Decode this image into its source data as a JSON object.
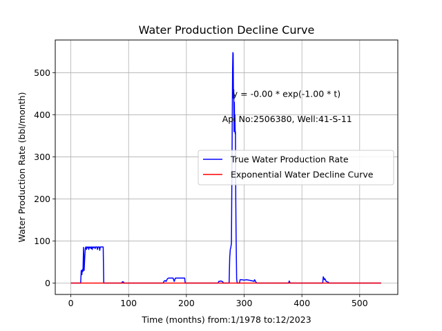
{
  "chart_data": {
    "type": "line",
    "title": "Water Production Decline Curve",
    "xlabel": "Time (months) from:1/1978 to:12/2023",
    "ylabel": "Water Production Rate (bbl/month)",
    "xlim": [
      -27,
      566
    ],
    "ylim": [
      -27,
      578
    ],
    "xticks": [
      0,
      100,
      200,
      300,
      400,
      500
    ],
    "yticks": [
      0,
      100,
      200,
      300,
      400,
      500
    ],
    "grid": true,
    "legend_position": "center-right",
    "annotations": [
      {
        "text": "y = -0.00 * exp(-1.00 * t)",
        "x": 280,
        "y": 450
      },
      {
        "text": "Api No:2506380, Well:41-S-11",
        "x": 262,
        "y": 390
      }
    ],
    "series": [
      {
        "name": "True Water Production Rate",
        "color": "#0000ff",
        "points": [
          [
            0,
            0
          ],
          [
            17,
            0
          ],
          [
            18,
            30
          ],
          [
            19,
            20
          ],
          [
            20,
            32
          ],
          [
            21,
            28
          ],
          [
            22,
            85
          ],
          [
            23,
            30
          ],
          [
            24,
            60
          ],
          [
            25,
            82
          ],
          [
            26,
            86
          ],
          [
            27,
            80
          ],
          [
            28,
            86
          ],
          [
            29,
            84
          ],
          [
            30,
            86
          ],
          [
            31,
            80
          ],
          [
            32,
            86
          ],
          [
            33,
            84
          ],
          [
            34,
            86
          ],
          [
            35,
            82
          ],
          [
            36,
            86
          ],
          [
            37,
            80
          ],
          [
            38,
            86
          ],
          [
            39,
            84
          ],
          [
            40,
            86
          ],
          [
            41,
            86
          ],
          [
            42,
            82
          ],
          [
            43,
            86
          ],
          [
            44,
            86
          ],
          [
            45,
            86
          ],
          [
            46,
            80
          ],
          [
            47,
            86
          ],
          [
            48,
            86
          ],
          [
            49,
            86
          ],
          [
            50,
            78
          ],
          [
            51,
            86
          ],
          [
            52,
            86
          ],
          [
            53,
            86
          ],
          [
            54,
            86
          ],
          [
            55,
            86
          ],
          [
            56,
            86
          ],
          [
            57,
            0
          ],
          [
            88,
            0
          ],
          [
            89,
            3
          ],
          [
            91,
            3
          ],
          [
            92,
            0
          ],
          [
            160,
            0
          ],
          [
            161,
            4
          ],
          [
            163,
            6
          ],
          [
            165,
            4
          ],
          [
            167,
            10
          ],
          [
            169,
            12
          ],
          [
            171,
            12
          ],
          [
            173,
            12
          ],
          [
            175,
            12
          ],
          [
            177,
            12
          ],
          [
            179,
            4
          ],
          [
            181,
            12
          ],
          [
            183,
            12
          ],
          [
            185,
            12
          ],
          [
            187,
            12
          ],
          [
            189,
            12
          ],
          [
            191,
            12
          ],
          [
            193,
            12
          ],
          [
            195,
            12
          ],
          [
            197,
            12
          ],
          [
            198,
            0
          ],
          [
            255,
            0
          ],
          [
            256,
            4
          ],
          [
            260,
            5
          ],
          [
            263,
            3
          ],
          [
            264,
            0
          ],
          [
            274,
            0
          ],
          [
            275,
            60
          ],
          [
            276,
            80
          ],
          [
            277,
            85
          ],
          [
            278,
            95
          ],
          [
            279,
            300
          ],
          [
            280,
            510
          ],
          [
            280.5,
            548
          ],
          [
            281,
            546
          ],
          [
            281.5,
            440
          ],
          [
            282,
            460
          ],
          [
            282.5,
            360
          ],
          [
            283,
            430
          ],
          [
            283.5,
            380
          ],
          [
            284,
            400
          ],
          [
            284.5,
            355
          ],
          [
            285,
            360
          ],
          [
            285.5,
            200
          ],
          [
            286,
            120
          ],
          [
            287,
            10
          ],
          [
            288,
            0
          ],
          [
            292,
            0
          ],
          [
            293,
            8
          ],
          [
            296,
            8
          ],
          [
            300,
            7
          ],
          [
            304,
            8
          ],
          [
            308,
            7
          ],
          [
            312,
            6
          ],
          [
            315,
            5
          ],
          [
            317,
            4
          ],
          [
            318,
            8
          ],
          [
            319,
            6
          ],
          [
            320,
            3
          ],
          [
            322,
            0
          ],
          [
            377,
            0
          ],
          [
            378,
            5
          ],
          [
            379,
            2
          ],
          [
            380,
            0
          ],
          [
            436,
            0
          ],
          [
            437,
            15
          ],
          [
            438,
            12
          ],
          [
            439,
            8
          ],
          [
            440,
            10
          ],
          [
            442,
            4
          ],
          [
            444,
            3
          ],
          [
            446,
            2
          ],
          [
            447,
            0
          ],
          [
            537,
            0
          ]
        ]
      },
      {
        "name": "Exponential Water Decline Curve",
        "color": "#ff0000",
        "points": [
          [
            0,
            0
          ],
          [
            537,
            0
          ]
        ]
      }
    ]
  }
}
